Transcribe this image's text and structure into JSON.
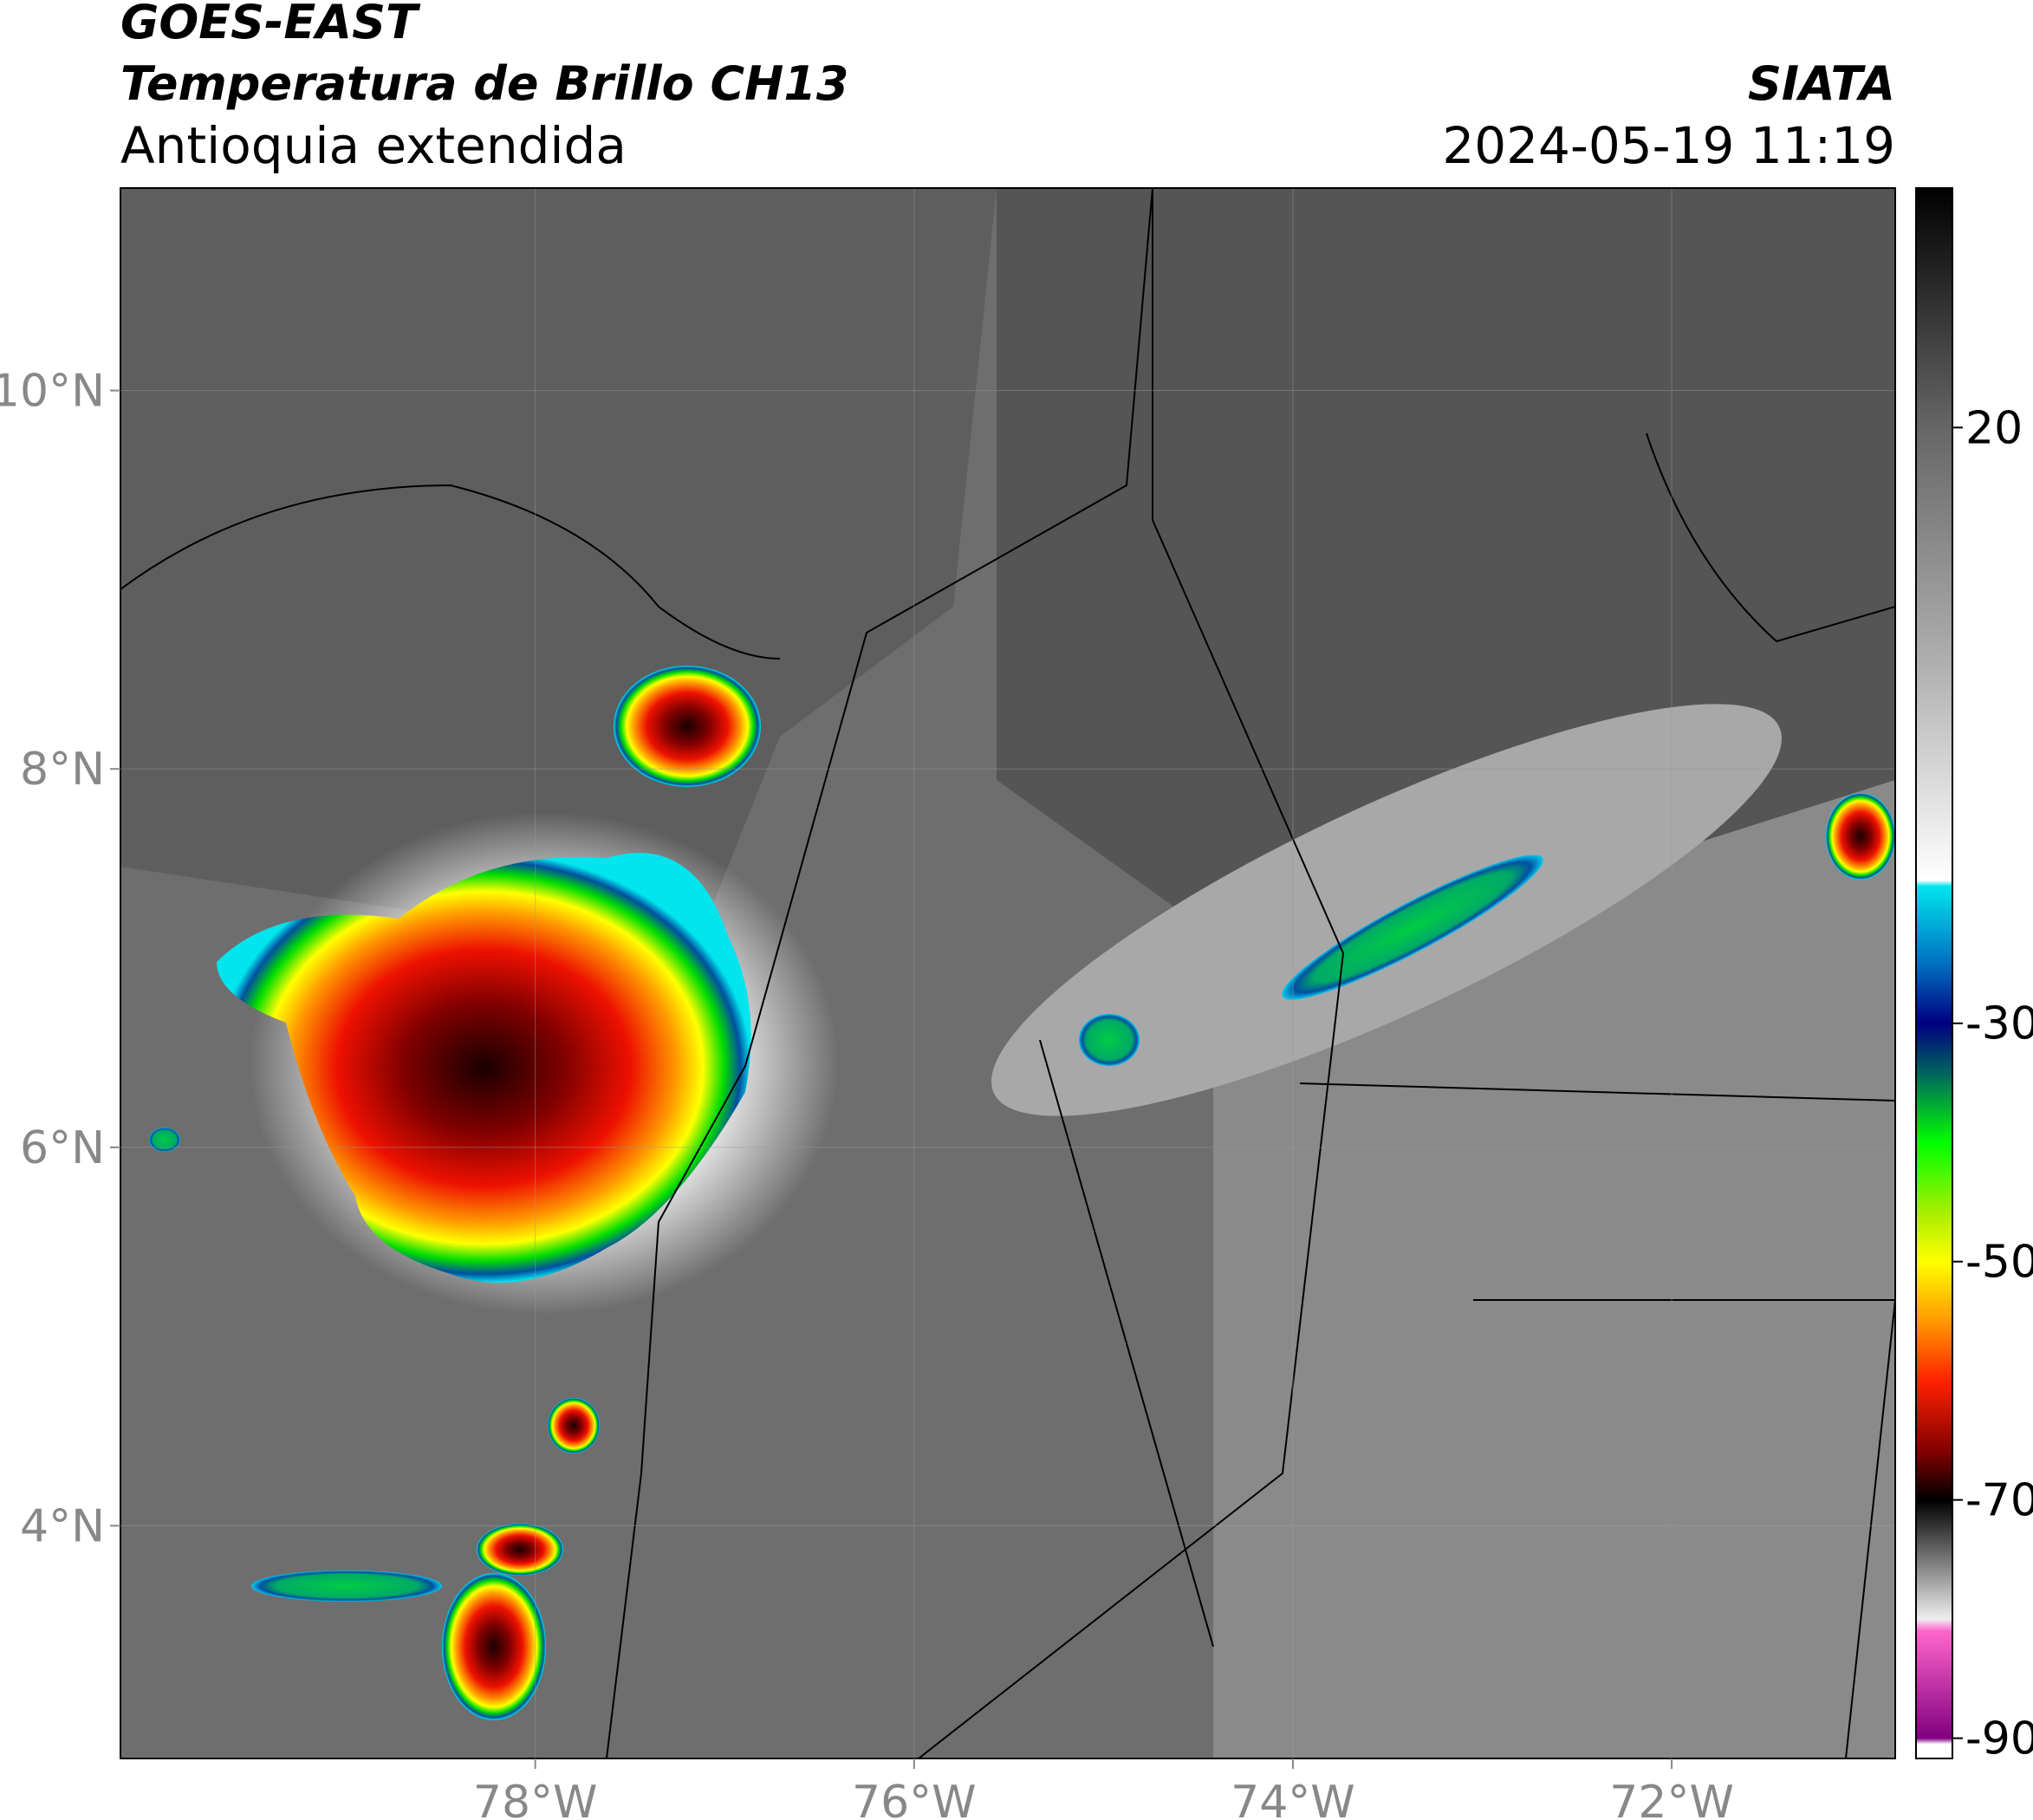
{
  "header": {
    "satellite": "GOES-EAST",
    "product": "Temperatura de Brillo CH13",
    "region": "Antioquia extendida",
    "source": "SIATA",
    "datetime": "2024-05-19 11:19"
  },
  "map": {
    "lonlim": [
      -80.19,
      -70.82
    ],
    "latlim": [
      2.77,
      11.07
    ],
    "lonticks": [
      {
        "value": -78,
        "label": "78°W"
      },
      {
        "value": -76,
        "label": "76°W"
      },
      {
        "value": -74,
        "label": "74°W"
      },
      {
        "value": -72,
        "label": "72°W"
      }
    ],
    "latticks": [
      {
        "value": 4,
        "label": "4°N"
      },
      {
        "value": 6,
        "label": "6°N"
      },
      {
        "value": 8,
        "label": "8°N"
      },
      {
        "value": 10,
        "label": "10°N"
      }
    ],
    "grid": true
  },
  "colorbar": {
    "lim": [
      -91.7,
      40.1
    ],
    "ticks": [
      20,
      -30,
      -50,
      -70,
      -90
    ],
    "colormap": [
      [
        40.1,
        "#000000"
      ],
      [
        20,
        "#666666"
      ],
      [
        0,
        "#b0b0b0"
      ],
      [
        -18,
        "#ffffff"
      ],
      [
        -18.5,
        "#00e5ee"
      ],
      [
        -25,
        "#0070c0"
      ],
      [
        -30,
        "#000080"
      ],
      [
        -34,
        "#006060"
      ],
      [
        -40,
        "#00ff00"
      ],
      [
        -46,
        "#aaee00"
      ],
      [
        -50,
        "#ffff00"
      ],
      [
        -55,
        "#ff9900"
      ],
      [
        -60,
        "#ff2200"
      ],
      [
        -66,
        "#800000"
      ],
      [
        -70,
        "#000000"
      ],
      [
        -75,
        "#777777"
      ],
      [
        -80,
        "#eeeeee"
      ],
      [
        -81,
        "#ff66cc"
      ],
      [
        -90,
        "#800080"
      ],
      [
        -90.5,
        "#ffffff"
      ],
      [
        -91.7,
        "#ffffff"
      ]
    ]
  }
}
